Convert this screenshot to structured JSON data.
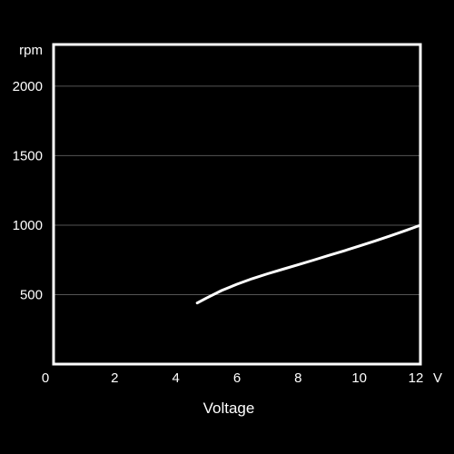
{
  "chart_data": {
    "type": "line",
    "xlabel": "Voltage",
    "x_unit": "V",
    "y_unit": "rpm",
    "xlim": [
      0,
      12
    ],
    "ylim": [
      0,
      2300
    ],
    "x_ticks": [
      0,
      2,
      4,
      6,
      8,
      10,
      12
    ],
    "y_ticks": [
      500,
      1000,
      1500,
      2000
    ],
    "y_gridlines": [
      500,
      1000,
      1500,
      2000
    ],
    "grid": true,
    "colors": {
      "background": "#000000",
      "plot_frame": "#ffffff",
      "gridline": "#555555",
      "line": "#ffffff",
      "text": "#ffffff"
    },
    "series": [
      {
        "x": [
          4.7,
          5.0,
          5.5,
          6.0,
          6.5,
          7.0,
          7.5,
          8.0,
          8.5,
          9.0,
          9.5,
          10.0,
          10.5,
          11.0,
          11.5,
          12.0
        ],
        "y": [
          440,
          475,
          530,
          575,
          615,
          650,
          683,
          715,
          748,
          782,
          815,
          850,
          885,
          922,
          960,
          1000
        ]
      }
    ]
  }
}
